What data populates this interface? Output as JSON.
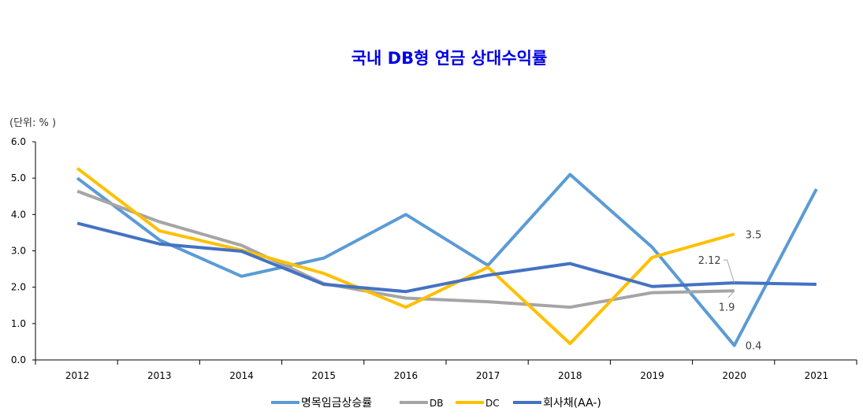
{
  "chart_data": {
    "type": "line",
    "title": "국내 DB형 연금 상대수익률",
    "unit_label": "(단위: % )",
    "categories": [
      "2012",
      "2013",
      "2014",
      "2015",
      "2016",
      "2017",
      "2018",
      "2019",
      "2020",
      "2021"
    ],
    "ylim": [
      0,
      6
    ],
    "yticks": [
      "0.0",
      "1.0",
      "2.0",
      "3.0",
      "4.0",
      "5.0",
      "6.0"
    ],
    "grid": false,
    "legend_position": "bottom",
    "series": [
      {
        "name": "명목임금상승률",
        "color": "#5B9BD5",
        "values": [
          5.0,
          3.3,
          2.3,
          2.8,
          4.0,
          2.6,
          5.1,
          3.1,
          0.4,
          4.7
        ]
      },
      {
        "name": "DB",
        "color": "#A5A5A5",
        "values": [
          4.64,
          3.8,
          3.15,
          2.1,
          1.7,
          1.6,
          1.45,
          1.85,
          1.9,
          null
        ]
      },
      {
        "name": "DC",
        "color": "#FFC000",
        "values": [
          5.27,
          3.55,
          3.02,
          2.38,
          1.45,
          2.55,
          0.45,
          2.82,
          3.46,
          null
        ]
      },
      {
        "name": "회사채(AA-)",
        "color": "#4472C4",
        "values": [
          3.76,
          3.19,
          2.99,
          2.08,
          1.88,
          2.33,
          2.65,
          2.02,
          2.12,
          2.08
        ]
      }
    ],
    "annotations": [
      {
        "text": "3.5",
        "series": "DC",
        "category": "2020"
      },
      {
        "text": "2.12",
        "series": "회사채(AA-)",
        "category": "2020"
      },
      {
        "text": "1.9",
        "series": "DB",
        "category": "2020"
      },
      {
        "text": "0.4",
        "series": "명목임금상승률",
        "category": "2020"
      }
    ]
  }
}
